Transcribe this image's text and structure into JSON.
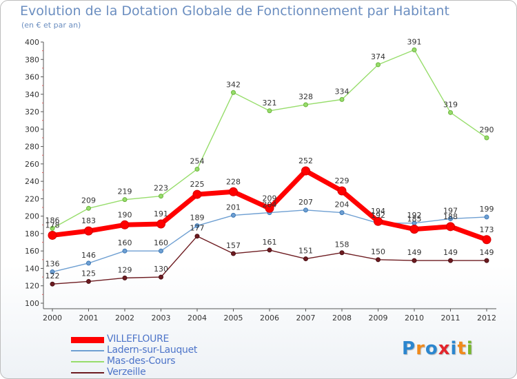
{
  "chart_data": {
    "type": "line",
    "title": "Evolution de la Dotation Globale de Fonctionnement par Habitant",
    "subtitle": "(en € et par an)",
    "x": [
      "2000",
      "2001",
      "2002",
      "2003",
      "2004",
      "2005",
      "2006",
      "2007",
      "2008",
      "2009",
      "2010",
      "2011",
      "2012"
    ],
    "ylim": [
      100,
      400
    ],
    "yticks": [
      100,
      120,
      140,
      160,
      180,
      200,
      220,
      240,
      260,
      280,
      300,
      320,
      340,
      360,
      380,
      400
    ],
    "grid": false,
    "legend_position": "bottom-left",
    "series": [
      {
        "name": "VILLEFLOURE",
        "color": "#ff0000",
        "values": [
          178,
          183,
          190,
          191,
          225,
          228,
          209,
          252,
          229,
          194,
          185,
          188,
          173
        ]
      },
      {
        "name": "Ladern-sur-Lauquet",
        "color": "#6e9fd2",
        "values": [
          136,
          146,
          160,
          160,
          189,
          201,
          204,
          207,
          204,
          192,
          192,
          197,
          199
        ]
      },
      {
        "name": "Mas-des-Cours",
        "color": "#97dd6b",
        "values": [
          186,
          209,
          219,
          223,
          254,
          342,
          321,
          328,
          334,
          374,
          391,
          319,
          290
        ]
      },
      {
        "name": "Verzeille",
        "color": "#6d1b20",
        "values": [
          122,
          125,
          129,
          130,
          177,
          157,
          161,
          151,
          158,
          150,
          149,
          149,
          149
        ]
      }
    ]
  },
  "logo": {
    "text": "Proxiti",
    "letters": [
      {
        "ch": "P",
        "color": "#2b86cf"
      },
      {
        "ch": "r",
        "color": "#f08a1c"
      },
      {
        "ch": "o",
        "color": "#2b86cf"
      },
      {
        "ch": "x",
        "color": "#e3262d"
      },
      {
        "ch": "i",
        "color": "#2b86cf"
      },
      {
        "ch": "t",
        "color": "#f08a1c"
      },
      {
        "ch": "i",
        "color": "#77b72c"
      }
    ]
  }
}
